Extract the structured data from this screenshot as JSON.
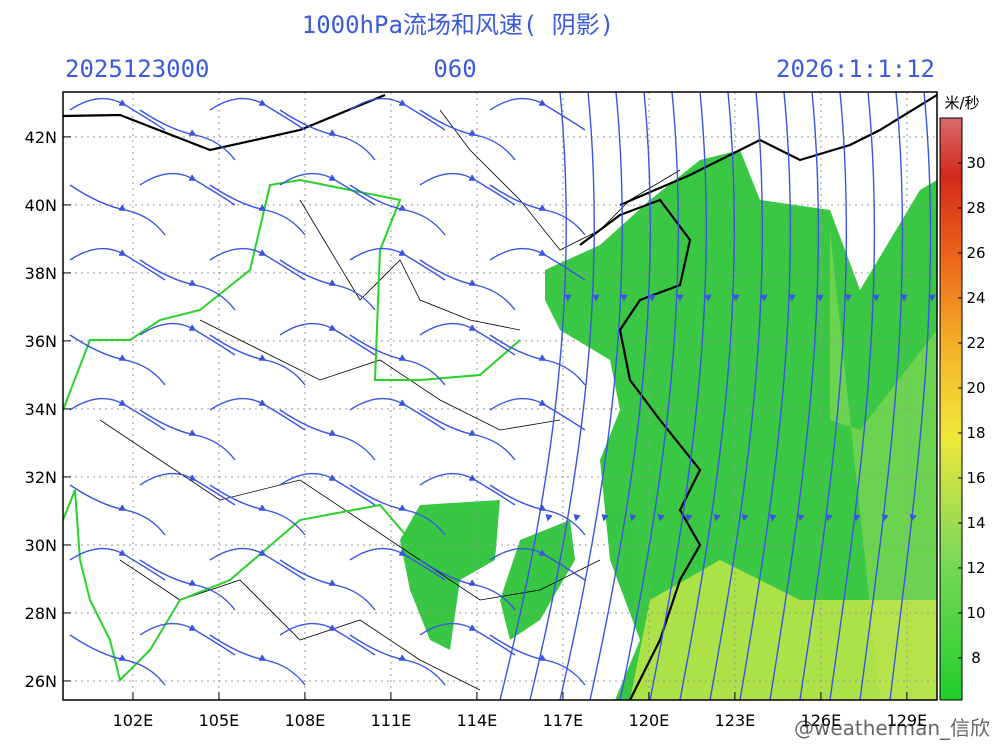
{
  "header": {
    "title": "1000hPa流场和风速( 阴影)",
    "init": "2025123000",
    "lead": "060",
    "valid": "2026:1:1:12"
  },
  "map": {
    "lonlim": [
      99.56,
      130.05
    ],
    "latlim": [
      25.44,
      43.32
    ],
    "lon_ticks": [
      {
        "value": 102,
        "label": "102E"
      },
      {
        "value": 105,
        "label": "105E"
      },
      {
        "value": 108,
        "label": "108E"
      },
      {
        "value": 111,
        "label": "111E"
      },
      {
        "value": 114,
        "label": "114E"
      },
      {
        "value": 117,
        "label": "117E"
      },
      {
        "value": 120,
        "label": "120E"
      },
      {
        "value": 123,
        "label": "123E"
      },
      {
        "value": 126,
        "label": "126E"
      },
      {
        "value": 129,
        "label": "129E"
      }
    ],
    "lat_ticks": [
      {
        "value": 26,
        "label": "26N"
      },
      {
        "value": 28,
        "label": "28N"
      },
      {
        "value": 30,
        "label": "30N"
      },
      {
        "value": 32,
        "label": "32N"
      },
      {
        "value": 34,
        "label": "34N"
      },
      {
        "value": 36,
        "label": "36N"
      },
      {
        "value": 38,
        "label": "38N"
      },
      {
        "value": 40,
        "label": "40N"
      },
      {
        "value": 42,
        "label": "42N"
      }
    ]
  },
  "colorbar": {
    "unit": "米/秒",
    "range": [
      6.13,
      32
    ],
    "ticks": [
      8,
      10,
      12,
      14,
      16,
      18,
      20,
      22,
      24,
      26,
      28,
      30
    ]
  },
  "watermark": "@weatherman_信欣"
}
